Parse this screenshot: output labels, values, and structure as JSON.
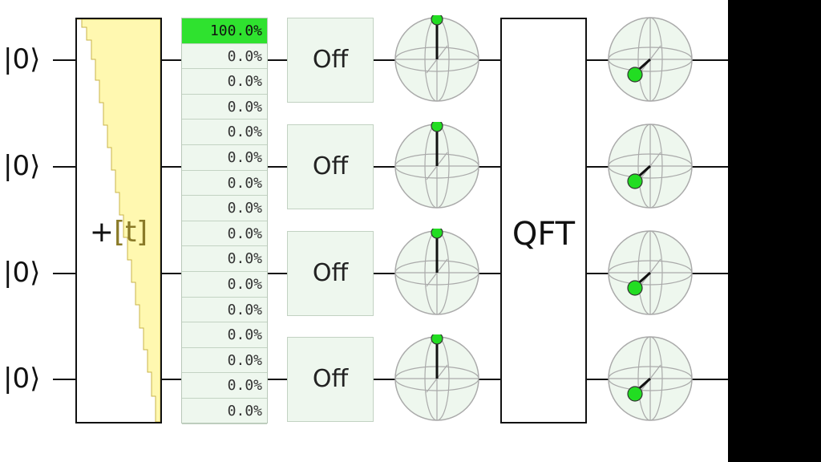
{
  "circuit": {
    "qubit_labels": [
      "|0⟩",
      "|0⟩",
      "|0⟩",
      "|0⟩"
    ],
    "add_gate": {
      "label_prefix": "+",
      "label_bracket_open": "[",
      "label_var": "t",
      "label_bracket_close": "]"
    },
    "probability_display": {
      "values": [
        "100.0%",
        "0.0%",
        "0.0%",
        "0.0%",
        "0.0%",
        "0.0%",
        "0.0%",
        "0.0%",
        "0.0%",
        "0.0%",
        "0.0%",
        "0.0%",
        "0.0%",
        "0.0%",
        "0.0%",
        "0.0%"
      ],
      "highlight_color": "#2fe22f"
    },
    "controls": [
      "Off",
      "Off",
      "Off",
      "Off"
    ],
    "qft_gate": {
      "label": "QFT"
    },
    "colors": {
      "gate_fill": "#fff8b0",
      "display_bg": "#eef7ee",
      "bloch_marker": "#22dd22",
      "wire": "#111111"
    }
  }
}
